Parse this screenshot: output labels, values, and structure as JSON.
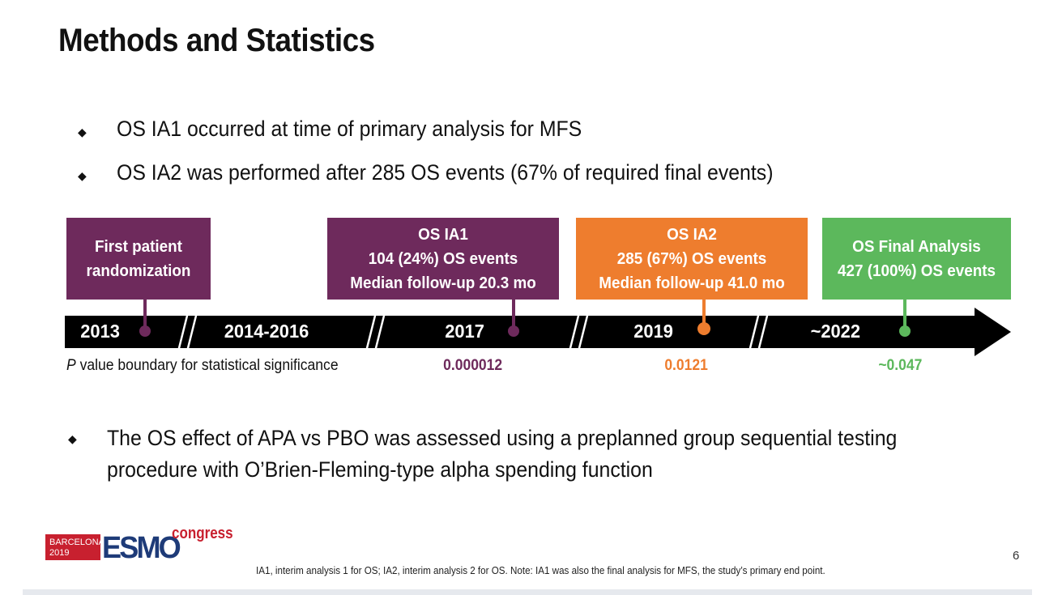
{
  "slide": {
    "title": "Methods and Statistics",
    "bullets_top": [
      "OS IA1 occurred at time of primary analysis for MFS",
      "OS IA2 was performed after 285 OS events (67% of required final events)"
    ],
    "bullet_bottom_lines": [
      "The OS effect of APA vs PBO was assessed using a preplanned group sequential testing",
      "procedure with O’Brien-Fleming-type alpha spending function"
    ],
    "bullet_glyph": "◆",
    "page_number": "6",
    "footnote": "IA1, interim analysis 1 for OS; IA2, interim analysis 2 for OS. Note: IA1 was also the final analysis for MFS, the study’s primary end point."
  },
  "timeline": {
    "boxes": [
      {
        "lines": [
          "First patient",
          "randomization"
        ],
        "color": "#6e2a5c"
      },
      {
        "lines": [
          "OS IA1",
          "104 (24%) OS events",
          "Median follow-up 20.3 mo"
        ],
        "color": "#6e2a5c"
      },
      {
        "lines": [
          "OS IA2",
          "285 (67%) OS events",
          "Median follow-up 41.0 mo"
        ],
        "color": "#ee7d2e"
      },
      {
        "lines": [
          "OS Final Analysis",
          "427 (100%) OS events"
        ],
        "color": "#5cb85c"
      }
    ],
    "years": [
      "2013",
      "2014-2016",
      "2017",
      "2019",
      "~2022"
    ],
    "pvalue_label_italic": "P",
    "pvalue_label_rest": " value boundary for statistical significance",
    "pvalues": [
      {
        "value": "0.000012",
        "color": "#6e2a5c"
      },
      {
        "value": "0.0121",
        "color": "#ee7d2e"
      },
      {
        "value": "~0.047",
        "color": "#5cb85c"
      }
    ]
  },
  "logo": {
    "city": "BARCELONA",
    "year": "2019",
    "brand": "ESMO",
    "suffix": "congress",
    "red": "#c8202f",
    "blue": "#1e3b78"
  }
}
